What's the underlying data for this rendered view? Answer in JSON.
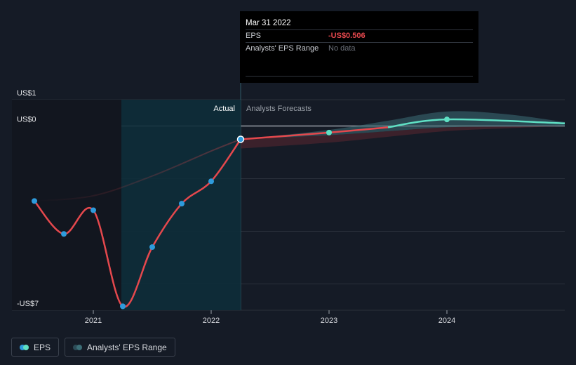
{
  "chart_data": {
    "type": "line",
    "y_labels": [
      "US$1",
      "US$0",
      "-US$7"
    ],
    "x_ticks": [
      "2021",
      "2022",
      "2023",
      "2024"
    ],
    "ylim": [
      -7,
      1
    ],
    "region_labels": {
      "actual": "Actual",
      "forecast": "Analysts Forecasts"
    },
    "series": [
      {
        "name": "EPS",
        "actual_points": [
          {
            "x": 2020.5,
            "y": -2.85
          },
          {
            "x": 2020.75,
            "y": -4.1
          },
          {
            "x": 2021.0,
            "y": -3.2
          },
          {
            "x": 2021.25,
            "y": -6.85
          },
          {
            "x": 2021.5,
            "y": -4.6
          },
          {
            "x": 2021.75,
            "y": -2.95
          },
          {
            "x": 2022.0,
            "y": -2.1
          },
          {
            "x": 2022.25,
            "y": -0.506
          }
        ],
        "forecast_points": [
          {
            "x": 2023.0,
            "y": -0.25
          },
          {
            "x": 2024.0,
            "y": 0.25
          },
          {
            "x": 2025.0,
            "y": 0.1
          }
        ],
        "colors": {
          "actual": "#e5484d",
          "forecast": "#5fe0c4",
          "marker": "#2e9bdc"
        }
      }
    ],
    "analyst_range": {
      "name": "Analysts' EPS Range",
      "x": [
        2022.25,
        2023.0,
        2023.5,
        2024.0,
        2024.5,
        2025.0
      ],
      "high": [
        -0.506,
        -0.15,
        0.2,
        0.55,
        0.45,
        0.15
      ],
      "low": [
        -0.506,
        -0.35,
        -0.2,
        -0.05,
        -0.02,
        0.0
      ]
    },
    "highlight": {
      "x": 2022.25,
      "y": -0.506
    }
  },
  "tooltip": {
    "date": "Mar 31 2022",
    "eps_label": "EPS",
    "eps_value": "-US$0.506",
    "range_label": "Analysts' EPS Range",
    "range_value": "No data"
  },
  "legend": {
    "eps": "EPS",
    "range": "Analysts' EPS Range"
  }
}
